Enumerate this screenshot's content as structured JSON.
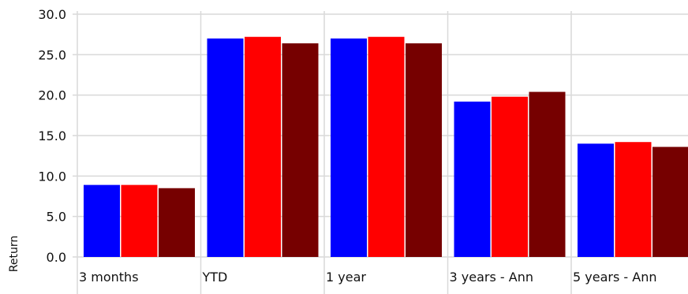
{
  "chart_data": {
    "type": "bar",
    "categories": [
      "3 months",
      "YTD",
      "1 year",
      "3 years - Ann",
      "5 years - Ann"
    ],
    "series": [
      {
        "color": "#0000ff",
        "values": [
          8.9,
          27.0,
          27.0,
          19.2,
          14.0
        ]
      },
      {
        "color": "#ff0000",
        "values": [
          8.9,
          27.2,
          27.2,
          19.8,
          14.2
        ]
      },
      {
        "color": "#760000",
        "values": [
          8.5,
          26.4,
          26.4,
          20.4,
          13.6
        ]
      }
    ],
    "title": "",
    "xlabel": "",
    "ylabel": "Return",
    "ylim": [
      0,
      30
    ],
    "yticks": [
      "0.0",
      "5.0",
      "10.0",
      "15.0",
      "20.0",
      "25.0",
      "30.0"
    ],
    "grid": true,
    "legend": "none"
  }
}
